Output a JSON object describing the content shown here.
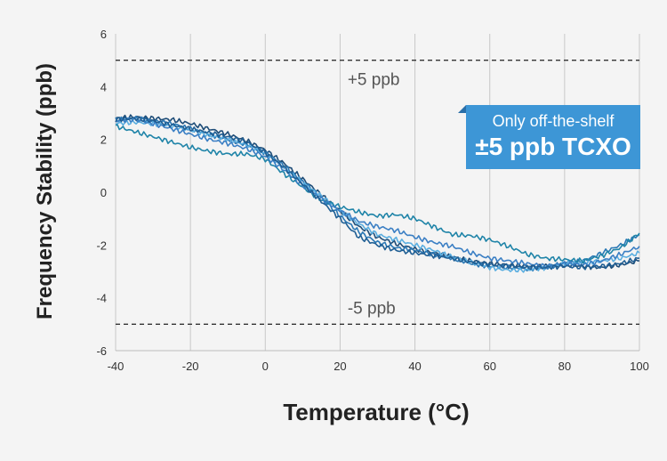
{
  "chart_data": {
    "type": "line",
    "xlabel": "Temperature (°C)",
    "ylabel": "Frequency Stability (ppb)",
    "xlim": [
      -40,
      100
    ],
    "ylim": [
      -6,
      6
    ],
    "x_ticks": [
      -40,
      -20,
      0,
      20,
      40,
      60,
      80,
      100
    ],
    "y_ticks": [
      -6,
      -4,
      -2,
      0,
      2,
      4,
      6
    ],
    "grid": "vertical",
    "reference_lines": [
      {
        "y": 5,
        "label": "+5 ppb",
        "style": "dashed"
      },
      {
        "y": -5,
        "label": "-5 ppb",
        "style": "dashed"
      }
    ],
    "annotation": {
      "line1": "Only off-the-shelf",
      "line2": "±5 ppb TCXO"
    },
    "series": [
      {
        "color": "#1e4d78",
        "x": [
          -40,
          -35,
          -30,
          -25,
          -20,
          -15,
          -10,
          -5,
          0,
          5,
          10,
          15,
          20,
          25,
          30,
          35,
          40,
          45,
          50,
          55,
          60,
          65,
          70,
          75,
          80,
          85,
          90,
          95,
          100
        ],
        "y": [
          2.8,
          2.85,
          2.8,
          2.75,
          2.6,
          2.4,
          2.2,
          1.95,
          1.6,
          1.1,
          0.5,
          -0.1,
          -0.7,
          -1.3,
          -1.7,
          -1.95,
          -2.15,
          -2.3,
          -2.45,
          -2.6,
          -2.7,
          -2.75,
          -2.8,
          -2.8,
          -2.75,
          -2.8,
          -2.85,
          -2.75,
          -2.6
        ]
      },
      {
        "color": "#2a78b5",
        "x": [
          -40,
          -35,
          -30,
          -25,
          -20,
          -15,
          -10,
          -5,
          0,
          5,
          10,
          15,
          20,
          25,
          30,
          35,
          40,
          45,
          50,
          55,
          60,
          65,
          70,
          75,
          80,
          85,
          90,
          95,
          100
        ],
        "y": [
          2.75,
          2.8,
          2.7,
          2.6,
          2.4,
          2.2,
          2.0,
          1.8,
          1.5,
          1.0,
          0.4,
          -0.2,
          -0.9,
          -1.5,
          -1.9,
          -2.1,
          -2.2,
          -2.35,
          -2.5,
          -2.7,
          -2.8,
          -2.85,
          -2.9,
          -2.85,
          -2.7,
          -2.6,
          -2.3,
          -2.0,
          -1.6
        ]
      },
      {
        "color": "#5aaee0",
        "x": [
          -40,
          -35,
          -30,
          -25,
          -20,
          -15,
          -10,
          -5,
          0,
          5,
          10,
          15,
          20,
          25,
          30,
          35,
          40,
          45,
          50,
          55,
          60,
          65,
          70,
          75,
          80,
          85,
          90,
          95,
          100
        ],
        "y": [
          2.6,
          2.65,
          2.6,
          2.5,
          2.35,
          2.15,
          2.0,
          1.8,
          1.45,
          0.95,
          0.35,
          -0.15,
          -0.7,
          -1.2,
          -1.6,
          -1.8,
          -2.0,
          -2.2,
          -2.45,
          -2.65,
          -2.85,
          -2.95,
          -2.95,
          -2.85,
          -2.7,
          -2.65,
          -2.6,
          -2.5,
          -2.3
        ]
      },
      {
        "color": "#1f84a8",
        "x": [
          -40,
          -35,
          -30,
          -25,
          -20,
          -15,
          -10,
          -5,
          0,
          5,
          10,
          15,
          20,
          25,
          30,
          35,
          40,
          45,
          50,
          55,
          60,
          65,
          70,
          75,
          80,
          85,
          90,
          95,
          100
        ],
        "y": [
          2.5,
          2.3,
          2.1,
          1.9,
          1.7,
          1.55,
          1.45,
          1.45,
          1.25,
          0.7,
          0.2,
          -0.3,
          -0.55,
          -0.75,
          -0.9,
          -0.85,
          -1.0,
          -1.3,
          -1.6,
          -1.65,
          -1.8,
          -2.05,
          -2.35,
          -2.5,
          -2.55,
          -2.6,
          -2.4,
          -2.1,
          -1.55
        ]
      },
      {
        "color": "#3b7fc4",
        "x": [
          -40,
          -35,
          -30,
          -25,
          -20,
          -15,
          -10,
          -5,
          0,
          5,
          10,
          15,
          20,
          25,
          30,
          35,
          40,
          45,
          50,
          55,
          60,
          65,
          70,
          75,
          80,
          85,
          90,
          95,
          100
        ],
        "y": [
          2.7,
          2.75,
          2.6,
          2.4,
          2.2,
          2.0,
          1.85,
          1.65,
          1.35,
          0.85,
          0.25,
          -0.25,
          -0.7,
          -1.1,
          -1.3,
          -1.45,
          -1.7,
          -1.9,
          -2.05,
          -2.3,
          -2.5,
          -2.6,
          -2.7,
          -2.8,
          -2.7,
          -2.75,
          -2.6,
          -2.35,
          -2.05
        ]
      },
      {
        "color": "#205f94",
        "x": [
          -40,
          -35,
          -30,
          -25,
          -20,
          -15,
          -10,
          -5,
          0,
          5,
          10,
          15,
          20,
          25,
          30,
          35,
          40,
          45,
          50,
          55,
          60,
          65,
          70,
          75,
          80,
          85,
          90,
          95,
          100
        ],
        "y": [
          2.75,
          2.8,
          2.7,
          2.55,
          2.4,
          2.25,
          2.1,
          1.9,
          1.5,
          0.95,
          0.3,
          -0.35,
          -1.0,
          -1.7,
          -2.0,
          -2.2,
          -2.3,
          -2.4,
          -2.5,
          -2.65,
          -2.75,
          -2.8,
          -2.85,
          -2.85,
          -2.8,
          -2.85,
          -2.8,
          -2.7,
          -2.5
        ]
      }
    ]
  }
}
